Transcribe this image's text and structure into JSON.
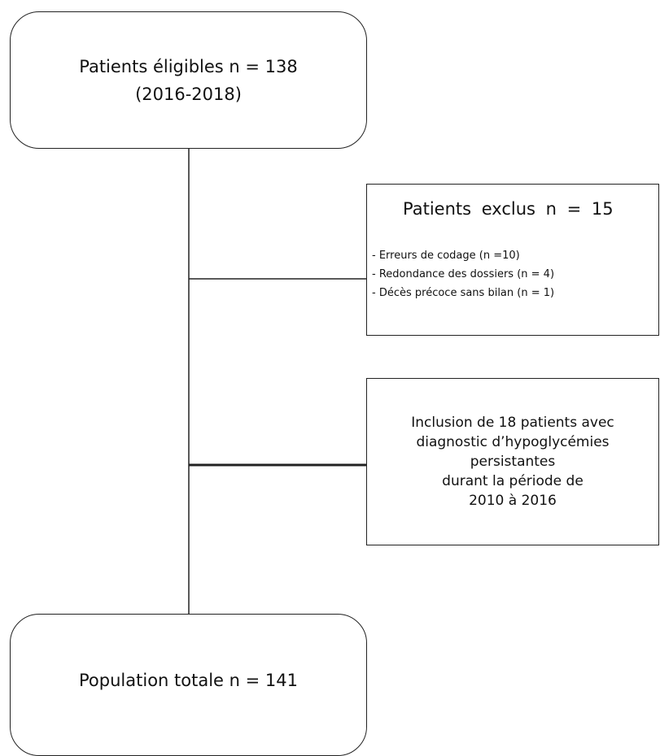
{
  "nodes": [
    {
      "lines": [
        "Patients éligibles n = 138",
        "(2016-2018)"
      ]
    },
    {
      "title": "Patients exclus n = 15",
      "items": [
        "- Erreurs de codage (n =10)",
        "- Redondance des dossiers (n = 4)",
        "- Décès précoce sans bilan (n = 1)"
      ]
    },
    {
      "lines": [
        "Inclusion de 18 patients avec",
        "diagnostic d’hypoglycémies",
        "persistantes",
        "durant la période de",
        "2010 à 2016"
      ]
    },
    {
      "lines": [
        "Population totale n = 141"
      ]
    }
  ]
}
